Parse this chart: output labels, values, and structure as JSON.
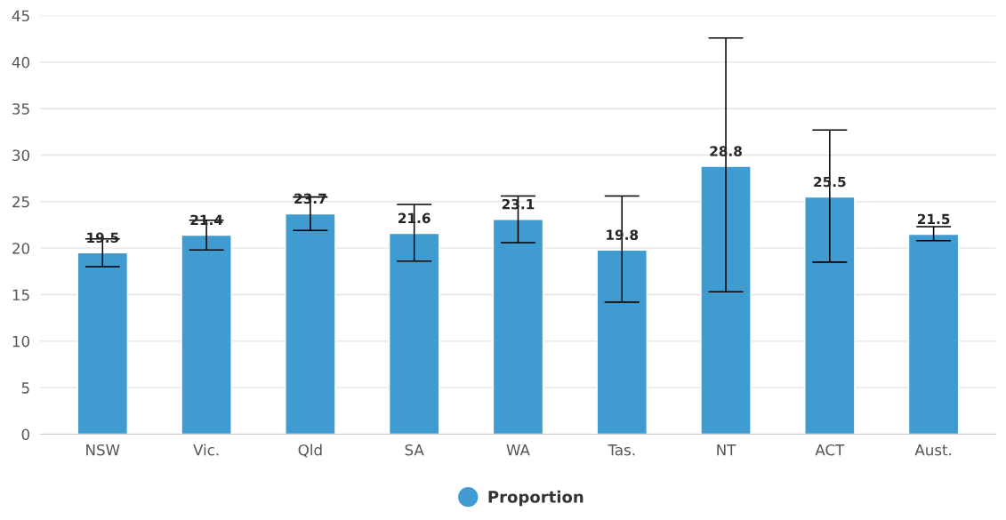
{
  "chart_data": {
    "type": "bar",
    "categories": [
      "NSW",
      "Vic.",
      "Qld",
      "SA",
      "WA",
      "Tas.",
      "NT",
      "ACT",
      "Aust."
    ],
    "series": [
      {
        "name": "Proportion",
        "color": "#3f9bd0",
        "values": [
          19.5,
          21.4,
          23.7,
          21.6,
          23.1,
          19.8,
          28.8,
          25.5,
          21.5
        ],
        "errors": [
          [
            18.0,
            21.0
          ],
          [
            19.8,
            23.0
          ],
          [
            21.9,
            25.5
          ],
          [
            18.6,
            24.7
          ],
          [
            20.6,
            25.6
          ],
          [
            14.2,
            25.6
          ],
          [
            15.3,
            42.6
          ],
          [
            18.5,
            32.7
          ],
          [
            20.8,
            22.3
          ]
        ]
      }
    ],
    "ylim": [
      0,
      45
    ],
    "yticks": [
      0,
      5,
      10,
      15,
      20,
      25,
      30,
      35,
      40,
      45
    ],
    "grid": "y",
    "legend": "bottom",
    "data_labels": true
  }
}
